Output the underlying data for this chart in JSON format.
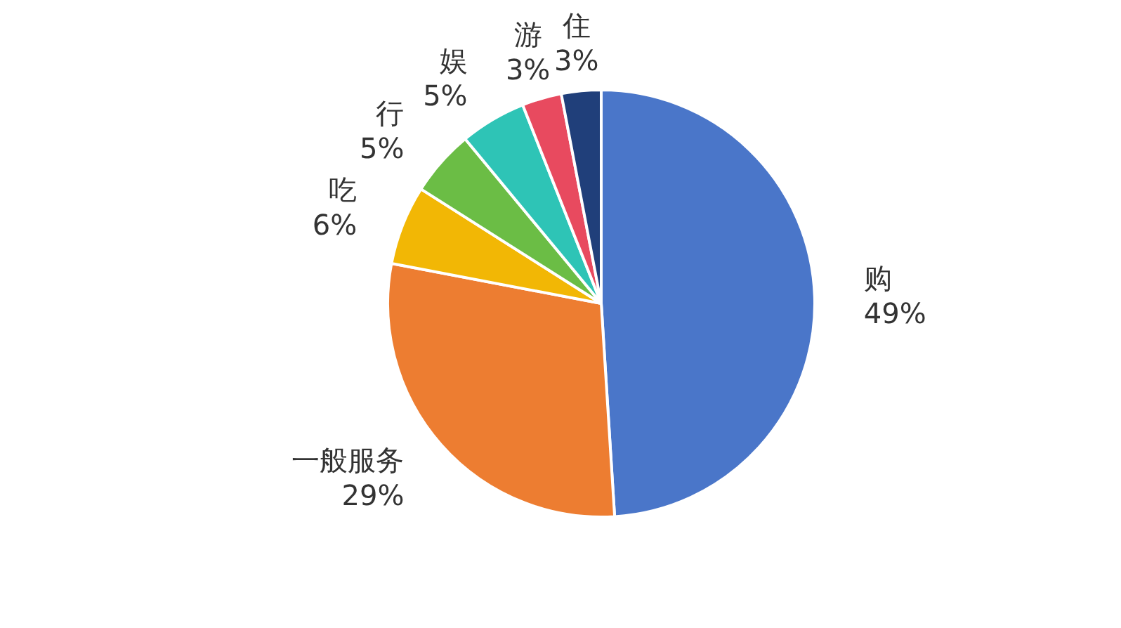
{
  "chart_data": {
    "type": "pie",
    "categories": [
      "购",
      "一般服务",
      "吃",
      "行",
      "娱",
      "游",
      "住"
    ],
    "values": [
      49,
      29,
      6,
      5,
      5,
      3,
      3
    ],
    "colors": [
      "#4a76c9",
      "#ed7d31",
      "#f2b705",
      "#6bbd45",
      "#2ec4b6",
      "#e84a5f",
      "#203f7a"
    ],
    "value_labels": [
      "49%",
      "29%",
      "6%",
      "5%",
      "5%",
      "3%",
      "3%"
    ]
  }
}
